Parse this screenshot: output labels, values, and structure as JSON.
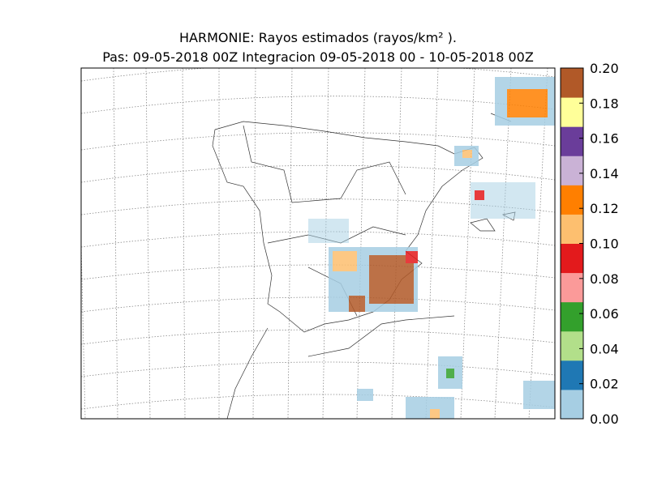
{
  "title": "HARMONIE: Rayos estimados  (rayos/km² ).",
  "subtitle": "Pas: 09-05-2018 00Z Integracion 09-05-2018 00 - 10-05-2018 00Z",
  "colorbar": {
    "clim": [
      0,
      0.2
    ],
    "colors": [
      "#a6cee3",
      "#1f78b4",
      "#b2df8a",
      "#33a02c",
      "#fb9a99",
      "#e31a1c",
      "#fdbf6f",
      "#ff7f00",
      "#cab2d6",
      "#6a3d9a",
      "#ffff99",
      "#b15928"
    ],
    "ticks": [
      {
        "value": 0,
        "label": "0.00"
      },
      {
        "value": 0.02,
        "label": "0.02"
      },
      {
        "value": 0.04,
        "label": "0.04"
      },
      {
        "value": 0.06,
        "label": "0.06"
      },
      {
        "value": 0.08,
        "label": "0.08"
      },
      {
        "value": 0.1,
        "label": "0.10"
      },
      {
        "value": 0.12,
        "label": "0.12"
      },
      {
        "value": 0.14,
        "label": "0.14"
      },
      {
        "value": 0.16,
        "label": "0.16"
      },
      {
        "value": 0.18,
        "label": "0.18"
      },
      {
        "value": 0.2,
        "label": "0.20"
      }
    ]
  }
}
